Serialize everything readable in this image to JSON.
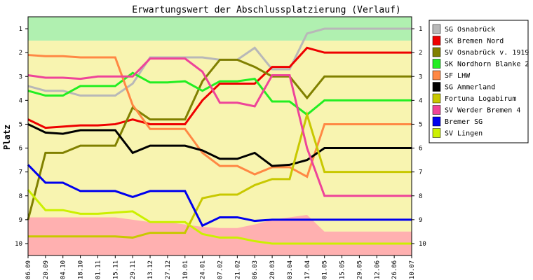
{
  "chart_data": {
    "type": "line",
    "title": "Erwartungswert der Abschlussplatzierung (Verlauf)",
    "ylabel": "Platz",
    "xlabel": "",
    "ylim": [
      10.5,
      0.5
    ],
    "y_ticks": [
      1,
      2,
      3,
      4,
      5,
      6,
      7,
      8,
      9,
      10
    ],
    "categories": [
      "06.09",
      "20.09",
      "04.10",
      "18.10",
      "01.11",
      "15.11",
      "29.11",
      "13.12",
      "27.12",
      "10.01",
      "24.01",
      "07.02",
      "21.02",
      "06.03",
      "20.03",
      "03.04",
      "17.04",
      "01.05",
      "15.05",
      "29.05",
      "12.06",
      "26.06",
      "10.07"
    ],
    "zones": [
      {
        "from": 0.5,
        "to": 1.5,
        "color": "#b0f0b0"
      },
      {
        "from": 1.5,
        "to": 9.5,
        "color": "#f8f4b0"
      },
      {
        "from": 9.5,
        "to": 10.5,
        "color": "#ffb0b0"
      }
    ],
    "risk_area_upper": [
      8.9,
      8.9,
      8.9,
      8.9,
      8.9,
      8.9,
      9.0,
      9.1,
      9.1,
      9.2,
      9.3,
      9.35,
      9.35,
      9.2,
      9.0,
      8.9,
      8.8,
      9.5,
      9.5,
      9.5,
      9.5,
      9.5,
      9.5
    ],
    "series": [
      {
        "name": "SG Osnabrück",
        "color": "#b8b8b8",
        "values": [
          3.4,
          3.6,
          3.6,
          3.8,
          3.8,
          3.8,
          3.3,
          2.2,
          2.2,
          2.2,
          2.2,
          2.3,
          2.3,
          1.8,
          2.7,
          2.7,
          1.2,
          1.0,
          1.0,
          1.0,
          1.0,
          1.0,
          1.0
        ]
      },
      {
        "name": "SK Bremen Nord",
        "color": "#ee0000",
        "values": [
          4.8,
          5.15,
          5.1,
          5.05,
          5.05,
          5.0,
          4.8,
          5.0,
          5.0,
          5.0,
          4.0,
          3.3,
          3.3,
          3.3,
          2.6,
          2.6,
          1.8,
          2.0,
          2.0,
          2.0,
          2.0,
          2.0,
          2.0
        ]
      },
      {
        "name": "SV Osnabrück v. 1919",
        "color": "#808000",
        "values": [
          9.0,
          6.2,
          6.2,
          5.9,
          5.9,
          5.9,
          4.3,
          4.8,
          4.8,
          4.8,
          3.2,
          2.3,
          2.3,
          2.6,
          3.0,
          3.0,
          3.9,
          3.0,
          3.0,
          3.0,
          3.0,
          3.0,
          3.0
        ]
      },
      {
        "name": "SK Nordhorn Blanke 2",
        "color": "#22ee22",
        "values": [
          3.6,
          3.8,
          3.8,
          3.4,
          3.4,
          3.4,
          2.85,
          3.25,
          3.25,
          3.2,
          3.6,
          3.2,
          3.2,
          3.1,
          4.05,
          4.05,
          4.6,
          4.0,
          4.0,
          4.0,
          4.0,
          4.0,
          4.0
        ]
      },
      {
        "name": "SF LHW",
        "color": "#ff8844",
        "values": [
          2.1,
          2.15,
          2.15,
          2.2,
          2.2,
          2.2,
          4.2,
          5.2,
          5.2,
          5.2,
          6.2,
          6.75,
          6.75,
          7.1,
          6.8,
          6.8,
          7.2,
          5.0,
          5.0,
          5.0,
          5.0,
          5.0,
          5.0
        ]
      },
      {
        "name": "SG Ammerland",
        "color": "#000000",
        "values": [
          5.0,
          5.35,
          5.4,
          5.25,
          5.25,
          5.25,
          6.2,
          5.9,
          5.9,
          5.9,
          6.1,
          6.45,
          6.45,
          6.2,
          6.75,
          6.7,
          6.5,
          6.0,
          6.0,
          6.0,
          6.0,
          6.0,
          6.0
        ]
      },
      {
        "name": "Fortuna Logabirum",
        "color": "#c8c800",
        "values": [
          9.7,
          9.7,
          9.7,
          9.7,
          9.7,
          9.7,
          9.75,
          9.55,
          9.55,
          9.55,
          8.1,
          7.95,
          7.95,
          7.55,
          7.3,
          7.3,
          4.6,
          7.0,
          7.0,
          7.0,
          7.0,
          7.0,
          7.0
        ]
      },
      {
        "name": "SV Werder Bremen 4",
        "color": "#ee4499",
        "values": [
          2.95,
          3.05,
          3.05,
          3.1,
          3.0,
          3.0,
          3.0,
          2.25,
          2.25,
          2.25,
          2.8,
          4.1,
          4.1,
          4.25,
          2.95,
          2.95,
          6.0,
          8.0,
          8.0,
          8.0,
          8.0,
          8.0,
          8.0
        ]
      },
      {
        "name": "Bremer SG",
        "color": "#0000ee",
        "values": [
          6.7,
          7.45,
          7.45,
          7.8,
          7.8,
          7.8,
          8.05,
          7.8,
          7.8,
          7.8,
          9.25,
          8.9,
          8.9,
          9.05,
          9.0,
          9.0,
          9.0,
          9.0,
          9.0,
          9.0,
          9.0,
          9.0,
          9.0
        ]
      },
      {
        "name": "SV Lingen",
        "color": "#ccf000",
        "values": [
          7.75,
          8.6,
          8.6,
          8.75,
          8.75,
          8.7,
          8.65,
          9.1,
          9.1,
          9.1,
          9.6,
          9.75,
          9.75,
          9.9,
          10.0,
          10.0,
          10.0,
          10.0,
          10.0,
          10.0,
          10.0,
          10.0,
          10.0
        ]
      }
    ],
    "grid": false,
    "legend_position": "right"
  }
}
